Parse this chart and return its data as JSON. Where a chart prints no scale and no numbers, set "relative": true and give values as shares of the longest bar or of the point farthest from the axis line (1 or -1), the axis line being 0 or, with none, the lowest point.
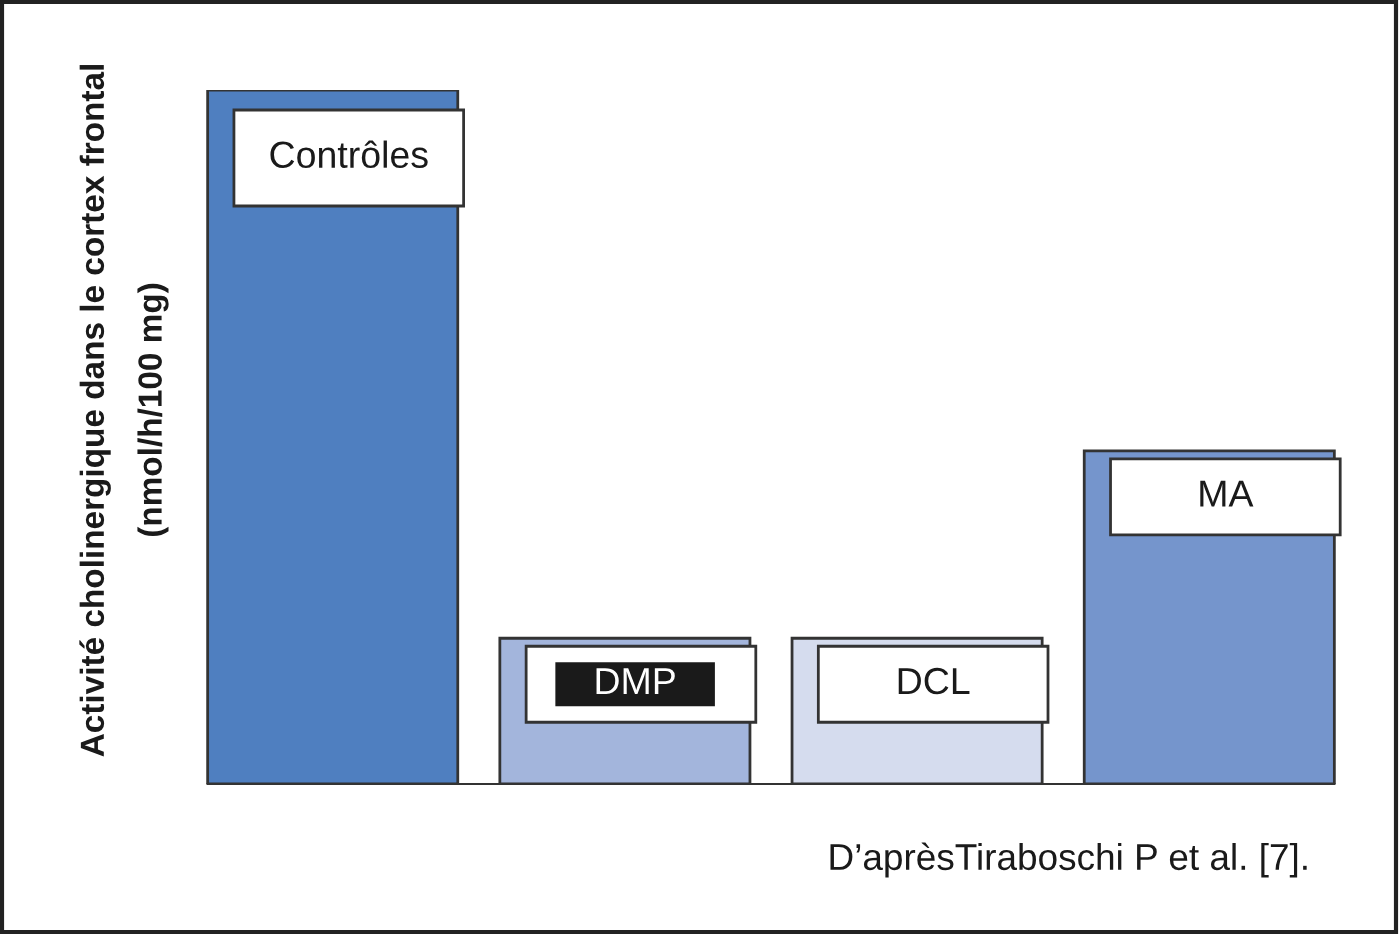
{
  "chart_data": {
    "type": "bar",
    "relative": true,
    "ylabel": "Activité cholinergique dans le cortex frontal\n(nmol/h/100 mg)",
    "categories": [
      "Contrôles",
      "DMP",
      "DCL",
      "MA"
    ],
    "values": [
      1,
      0.21,
      0.21,
      0.48
    ],
    "colors": [
      "#4f7fc0",
      "#a3b5dc",
      "#d5dcee",
      "#7595cc"
    ],
    "annotations": [
      "D’aprèsTiraboschi P et al. [7]."
    ]
  }
}
